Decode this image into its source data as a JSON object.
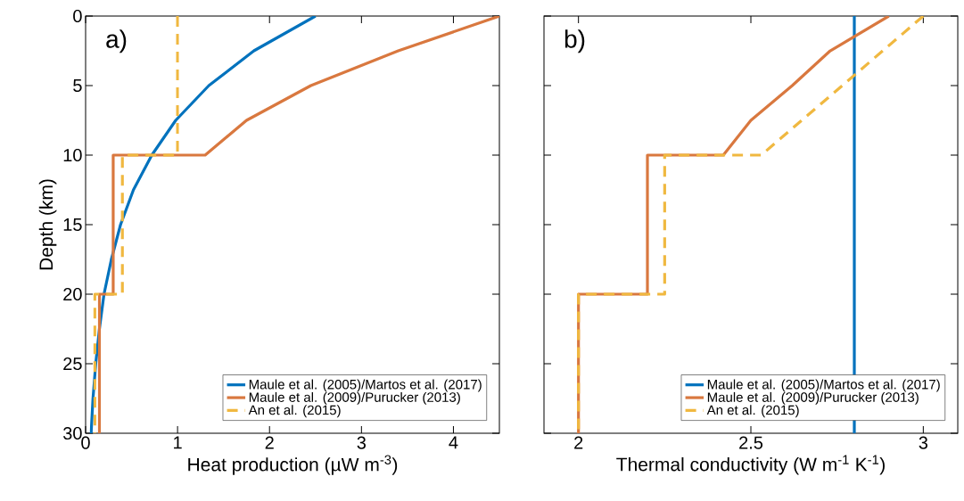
{
  "chart_data": [
    {
      "type": "line",
      "xlabel": "Heat production (µW m$^{-3}$)",
      "ylabel": "Depth (km)",
      "annotations": [
        "a)"
      ],
      "xlim": [
        0,
        4.5
      ],
      "ylim": [
        30,
        0
      ],
      "xticks": [
        0,
        1,
        2,
        3,
        4
      ],
      "yticks": [
        0,
        5,
        10,
        15,
        20,
        25,
        30
      ],
      "legend": "bottom right",
      "series": [
        {
          "name": "Maule et al. (2005)/Martos et al. (2017)",
          "color": "#0072bd",
          "line_style": "solid",
          "x": [
            2.5,
            1.83,
            1.34,
            0.98,
            0.72,
            0.52,
            0.38,
            0.28,
            0.2,
            0.15,
            0.11,
            0.08,
            0.06
          ],
          "values": [
            0,
            2.5,
            5,
            7.5,
            10,
            12.5,
            15,
            17.5,
            20,
            22.5,
            25,
            27.5,
            30
          ]
        },
        {
          "name": "Maule et al. (2009)/Purucker (2013)",
          "color": "#d9783f",
          "line_style": "solid",
          "x": [
            4.5,
            3.4,
            2.45,
            1.75,
            1.3,
            0.3,
            0.3,
            0.15,
            0.15
          ],
          "values": [
            0,
            2.5,
            5,
            7.5,
            10,
            10,
            20,
            20,
            30
          ]
        },
        {
          "name": "An et al. (2015)",
          "color": "#f0b840",
          "line_style": "dashed",
          "x": [
            1,
            1,
            0.4,
            0.4,
            0.1,
            0.1
          ],
          "values": [
            0,
            10,
            10,
            20,
            20,
            30
          ]
        }
      ]
    },
    {
      "type": "line",
      "xlabel": "Thermal conductivity (W m$^{-1}$ K$^{-1}$)",
      "annotations": [
        "b)"
      ],
      "xlim": [
        1.9,
        3.1
      ],
      "ylim": [
        30,
        0
      ],
      "xticks": [
        2,
        2.5,
        3
      ],
      "yticks": [
        0,
        5,
        10,
        15,
        20,
        25,
        30
      ],
      "legend": "bottom right",
      "tick_labels": "x",
      "series": [
        {
          "name": "Maule et al. (2005)/Martos et al. (2017)",
          "color": "#0072bd",
          "line_style": "solid",
          "x": [
            2.8,
            2.8
          ],
          "values": [
            0,
            30
          ]
        },
        {
          "name": "Maule et al. (2009)/Purucker (2013)",
          "color": "#d9783f",
          "line_style": "solid",
          "x": [
            2.9,
            2.73,
            2.62,
            2.5,
            2.42,
            2.2,
            2.2,
            2.0,
            2.0
          ],
          "values": [
            0,
            2.5,
            5,
            7.5,
            10,
            10,
            20,
            20,
            30
          ]
        },
        {
          "name": "An et al. (2015)",
          "color": "#f0b840",
          "line_style": "dashed",
          "x": [
            3.0,
            2.53,
            2.25,
            2.25,
            2.0,
            2.0
          ],
          "values": [
            0,
            10,
            10,
            20,
            20,
            30
          ]
        }
      ]
    }
  ]
}
